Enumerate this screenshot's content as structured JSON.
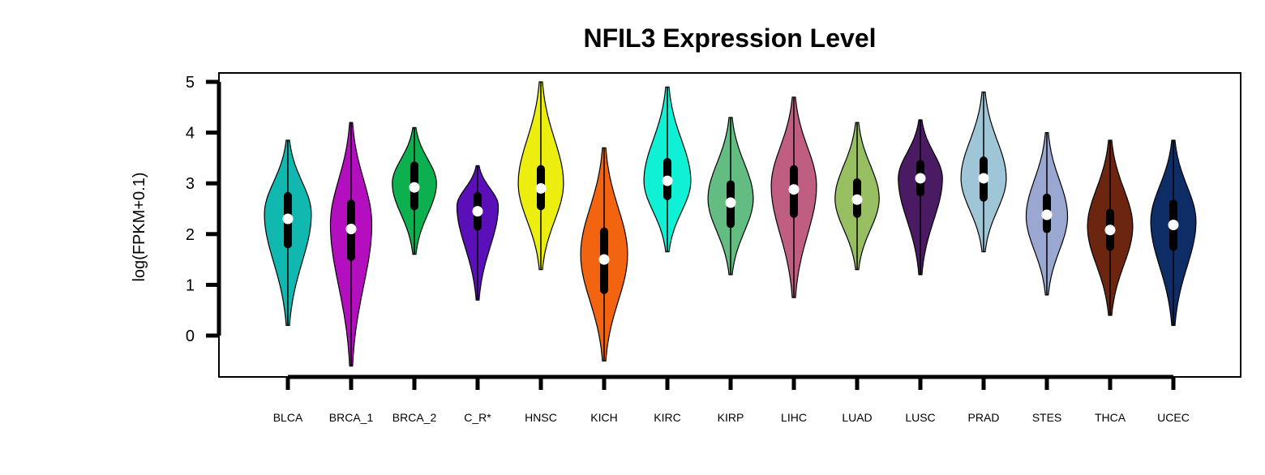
{
  "chart_data": {
    "type": "violin",
    "title": "NFIL3 Expression Level",
    "xlabel": "",
    "ylabel": "log(FPKM+0.1)",
    "ylim": [
      -0.8,
      5.2
    ],
    "yticks": [
      0,
      1,
      2,
      3,
      4,
      5
    ],
    "legend": "none",
    "grid": false,
    "categories": [
      "BLCA",
      "BRCA_1",
      "BRCA_2",
      "C_R*",
      "HNSC",
      "KICH",
      "KIRC",
      "KIRP",
      "LIHC",
      "LUAD",
      "LUSC",
      "PRAD",
      "STES",
      "THCA",
      "UCEC"
    ],
    "series": [
      {
        "category": "BLCA",
        "color": "#10b8b0",
        "min": 0.2,
        "max": 3.85,
        "q1": 1.8,
        "median": 2.3,
        "q3": 2.75,
        "mode": 2.4,
        "width": 0.85
      },
      {
        "category": "BRCA_1",
        "color": "#b40fbf",
        "min": -0.6,
        "max": 4.2,
        "q1": 1.55,
        "median": 2.1,
        "q3": 2.6,
        "mode": 2.2,
        "width": 0.75
      },
      {
        "category": "BRCA_2",
        "color": "#0db04f",
        "min": 1.6,
        "max": 4.1,
        "q1": 2.55,
        "median": 2.92,
        "q3": 3.35,
        "mode": 3.0,
        "width": 0.8
      },
      {
        "category": "C_R*",
        "color": "#5a0fb9",
        "min": 0.7,
        "max": 3.35,
        "q1": 2.15,
        "median": 2.45,
        "q3": 2.75,
        "mode": 2.55,
        "width": 0.75
      },
      {
        "category": "HNSC",
        "color": "#ecee10",
        "min": 1.3,
        "max": 5.0,
        "q1": 2.55,
        "median": 2.9,
        "q3": 3.28,
        "mode": 3.0,
        "width": 0.82
      },
      {
        "category": "KICH",
        "color": "#f26410",
        "min": -0.5,
        "max": 3.7,
        "q1": 0.9,
        "median": 1.5,
        "q3": 2.05,
        "mode": 1.6,
        "width": 0.85
      },
      {
        "category": "KIRC",
        "color": "#0ff0d5",
        "min": 1.65,
        "max": 4.9,
        "q1": 2.75,
        "median": 3.05,
        "q3": 3.42,
        "mode": 3.05,
        "width": 0.85
      },
      {
        "category": "KIRP",
        "color": "#63bd83",
        "min": 1.2,
        "max": 4.3,
        "q1": 2.2,
        "median": 2.62,
        "q3": 2.98,
        "mode": 2.7,
        "width": 0.82
      },
      {
        "category": "LIHC",
        "color": "#bf5e80",
        "min": 0.75,
        "max": 4.7,
        "q1": 2.4,
        "median": 2.88,
        "q3": 3.28,
        "mode": 2.95,
        "width": 0.82
      },
      {
        "category": "LUAD",
        "color": "#98be62",
        "min": 1.3,
        "max": 4.2,
        "q1": 2.4,
        "median": 2.68,
        "q3": 3.02,
        "mode": 2.7,
        "width": 0.8
      },
      {
        "category": "LUSC",
        "color": "#4a1b63",
        "min": 1.2,
        "max": 4.25,
        "q1": 2.82,
        "median": 3.1,
        "q3": 3.38,
        "mode": 3.1,
        "width": 0.8
      },
      {
        "category": "PRAD",
        "color": "#9fc6d6",
        "min": 1.65,
        "max": 4.8,
        "q1": 2.72,
        "median": 3.1,
        "q3": 3.45,
        "mode": 3.1,
        "width": 0.82
      },
      {
        "category": "STES",
        "color": "#9aa8d1",
        "min": 0.8,
        "max": 4.0,
        "q1": 2.1,
        "median": 2.38,
        "q3": 2.72,
        "mode": 2.35,
        "width": 0.75
      },
      {
        "category": "THCA",
        "color": "#6c2610",
        "min": 0.4,
        "max": 3.85,
        "q1": 1.75,
        "median": 2.08,
        "q3": 2.42,
        "mode": 2.15,
        "width": 0.82
      },
      {
        "category": "UCEC",
        "color": "#0e2d67",
        "min": 0.2,
        "max": 3.85,
        "q1": 1.75,
        "median": 2.18,
        "q3": 2.6,
        "mode": 2.25,
        "width": 0.82
      }
    ]
  }
}
